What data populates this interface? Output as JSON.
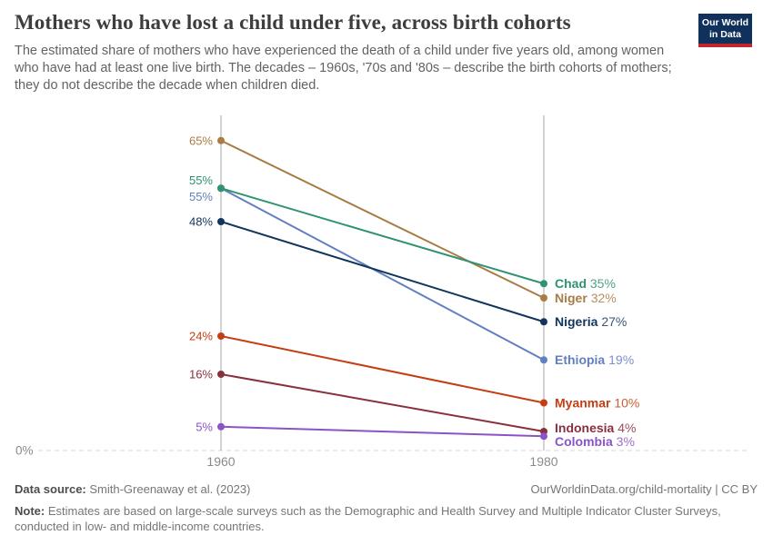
{
  "header": {
    "title": "Mothers who have lost a child under five, across birth cohorts",
    "subtitle": "The estimated share of mothers who have experienced the death of a child under five years old, among women who have had at least one live birth. The decades – 1960s, '70s and '80s – describe the birth cohorts of mothers; they do not describe the decade when children died.",
    "logo": {
      "line1": "Our World",
      "line2": "in Data",
      "bg_color": "#10315c",
      "accent_color": "#c0272d"
    }
  },
  "chart_data": {
    "type": "line",
    "variant": "slope",
    "title": "Mothers who have lost a child under five, across birth cohorts",
    "x": [
      1960,
      1980
    ],
    "x_tick_labels": [
      "1960",
      "1980"
    ],
    "ylabel": "",
    "xlabel": "",
    "ylim": [
      0,
      70
    ],
    "baseline_label": "0%",
    "grid": "dashed-baseline-only",
    "legend_position": "end-of-line-labels",
    "axis_color": "#a5a5a5",
    "baseline_color": "#d7d7d7",
    "tick_text_color": "#8a8a8a",
    "series": [
      {
        "name": "Niger",
        "color": "#a87c43",
        "values": [
          65,
          32
        ],
        "start_label": "65%",
        "end_label": "32%",
        "start_label_dy": 0,
        "end_label_dy": 0
      },
      {
        "name": "Ethiopia",
        "color": "#6180c0",
        "values": [
          55,
          19
        ],
        "start_label": "55%",
        "end_label": "19%",
        "start_label_dy": 9,
        "end_label_dy": 0
      },
      {
        "name": "Nigeria",
        "color": "#12355e",
        "values": [
          48,
          27
        ],
        "start_label": "48%",
        "end_label": "27%",
        "start_label_dy": 0,
        "end_label_dy": 0
      },
      {
        "name": "Chad",
        "color": "#2f9270",
        "values": [
          55,
          35
        ],
        "start_label": "55%",
        "end_label": "35%",
        "start_label_dy": -9,
        "end_label_dy": 0
      },
      {
        "name": "Myanmar",
        "color": "#c63d14",
        "values": [
          24,
          10
        ],
        "start_label": "24%",
        "end_label": "10%",
        "start_label_dy": 0,
        "end_label_dy": 0
      },
      {
        "name": "Indonesia",
        "color": "#8a2f3e",
        "values": [
          16,
          4
        ],
        "start_label": "16%",
        "end_label": "4%",
        "start_label_dy": 0,
        "end_label_dy": -4
      },
      {
        "name": "Colombia",
        "color": "#8b53c7",
        "values": [
          5,
          3
        ],
        "start_label": "5%",
        "end_label": "3%",
        "start_label_dy": 0,
        "end_label_dy": 6
      }
    ]
  },
  "footer": {
    "source_label": "Data source:",
    "source_value": " Smith-Greenaway et al. (2023)",
    "link": "OurWorldinData.org/child-mortality | CC BY",
    "note_label": "Note:",
    "note_value": " Estimates are based on large-scale surveys such as the Demographic and Health Survey and Multiple Indicator Cluster Surveys, conducted in low- and middle-income countries."
  }
}
